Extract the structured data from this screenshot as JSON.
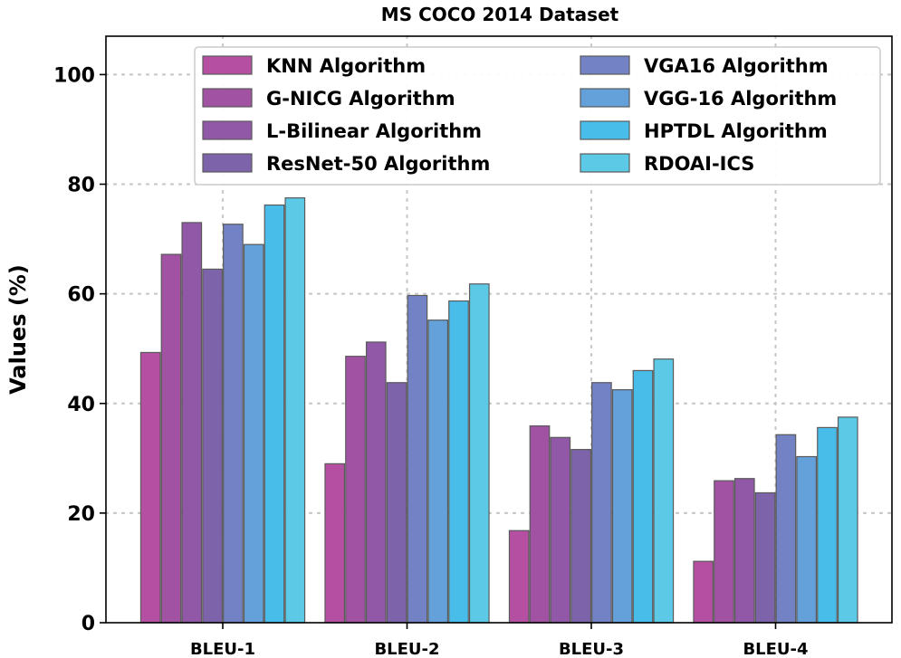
{
  "chart_data": {
    "type": "bar",
    "title": "MS COCO 2014 Dataset",
    "xlabel": "",
    "ylabel": "Values (%)",
    "ylim": [
      0,
      107
    ],
    "yticks": [
      0,
      20,
      40,
      60,
      80,
      100
    ],
    "grid": true,
    "legend_position": "upper-center, 2 columns",
    "categories": [
      "BLEU-1",
      "BLEU-2",
      "BLEU-3",
      "BLEU-4"
    ],
    "series": [
      {
        "name": "KNN Algorithm",
        "color": "#b44fa1",
        "values": [
          49.3,
          29.0,
          16.8,
          11.2
        ]
      },
      {
        "name": "G-NICG Algorithm",
        "color": "#a152a3",
        "values": [
          67.2,
          48.6,
          35.9,
          25.9
        ]
      },
      {
        "name": "L-Bilinear Algorithm",
        "color": "#9058a6",
        "values": [
          73.0,
          51.2,
          33.8,
          26.3
        ]
      },
      {
        "name": "ResNet-50 Algorithm",
        "color": "#7d63a9",
        "values": [
          64.5,
          43.8,
          31.6,
          23.7
        ]
      },
      {
        "name": "VGA16 Algorithm",
        "color": "#7381c5",
        "values": [
          72.7,
          59.7,
          43.8,
          34.3
        ]
      },
      {
        "name": "VGG-16 Algorithm",
        "color": "#64a0d9",
        "values": [
          69.0,
          55.2,
          42.5,
          30.3
        ]
      },
      {
        "name": "HPTDL Algorithm",
        "color": "#48bde9",
        "values": [
          76.2,
          58.7,
          46.0,
          35.6
        ]
      },
      {
        "name": "RDOAI-ICS",
        "color": "#5ccae6",
        "values": [
          77.5,
          61.8,
          48.1,
          37.5
        ]
      }
    ]
  }
}
